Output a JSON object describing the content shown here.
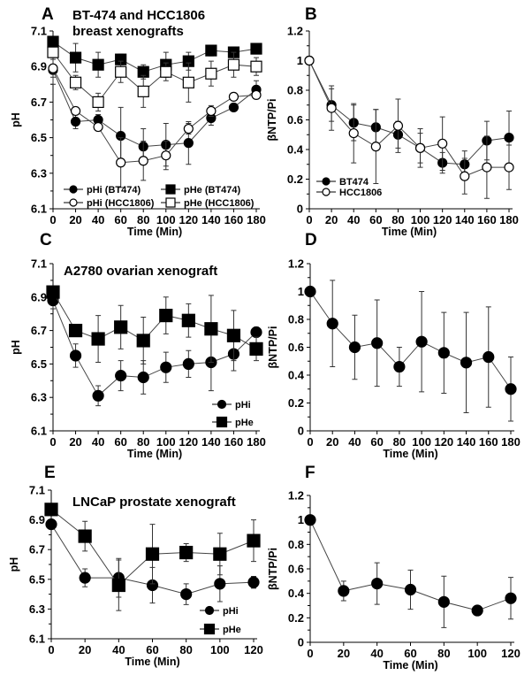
{
  "chart_data": [
    {
      "panel": "A",
      "type": "line",
      "title_lines": [
        "BT-474 and HCC1806",
        "breast xenografts"
      ],
      "xlabel": "Time (Min)",
      "ylabel": "pH",
      "xlim": [
        0,
        180
      ],
      "ylim": [
        6.1,
        7.1
      ],
      "xticks": [
        "0",
        "20",
        "40",
        "60",
        "80",
        "100",
        "120",
        "140",
        "160",
        "180"
      ],
      "yticks": [
        "6.1",
        "6.3",
        "6.5",
        "6.7",
        "6.9",
        "7.1"
      ],
      "x": [
        0,
        20,
        40,
        60,
        80,
        100,
        120,
        140,
        160,
        180
      ],
      "series": [
        {
          "name": "pHi (BT474)",
          "marker": "circle",
          "fill": "#000000",
          "values": [
            6.88,
            6.59,
            6.6,
            6.51,
            6.45,
            6.46,
            6.47,
            6.61,
            6.67,
            6.77
          ],
          "err": [
            0.08,
            0.04,
            0.03,
            0.16,
            0.1,
            0.12,
            0.12,
            0.04,
            0.02,
            0.05
          ]
        },
        {
          "name": "pHi (HCC1806)",
          "marker": "circle",
          "fill": "#ffffff",
          "values": [
            6.89,
            6.65,
            6.56,
            6.36,
            6.37,
            6.4,
            6.55,
            6.65,
            6.73,
            6.74
          ],
          "err": [
            0.05,
            0.02,
            0.02,
            0.14,
            0.11,
            0.08,
            0.03,
            0.03,
            0.02,
            0.02
          ]
        },
        {
          "name": "pHe (BT474)",
          "marker": "square",
          "fill": "#000000",
          "values": [
            7.04,
            6.95,
            6.91,
            6.94,
            6.87,
            6.91,
            6.93,
            6.99,
            6.98,
            7.0
          ],
          "err": [
            0.02,
            0.08,
            0.07,
            0.03,
            0.04,
            0.07,
            0.05,
            0.03,
            0.03,
            0.02
          ]
        },
        {
          "name": "pHe (HCC1806)",
          "marker": "square",
          "fill": "#ffffff",
          "values": [
            6.98,
            6.81,
            6.7,
            6.87,
            6.76,
            6.87,
            6.81,
            6.86,
            6.91,
            6.9
          ],
          "err": [
            0.03,
            0.04,
            0.05,
            0.06,
            0.09,
            0.05,
            0.11,
            0.07,
            0.07,
            0.05
          ]
        }
      ],
      "legend_order": [
        0,
        1,
        2,
        3
      ],
      "legend": "bottom, two columns"
    },
    {
      "panel": "B",
      "type": "line",
      "title_lines": [],
      "xlabel": "Time (Min)",
      "ylabel": "βNTP/Pi",
      "xlim": [
        0,
        180
      ],
      "ylim": [
        0,
        1.2
      ],
      "xticks": [
        "0",
        "20",
        "40",
        "60",
        "80",
        "100",
        "120",
        "140",
        "160",
        "180"
      ],
      "yticks": [
        "0",
        "0.2",
        "0.4",
        "0.6",
        "0.8",
        "1",
        "1.2"
      ],
      "x": [
        0,
        20,
        40,
        60,
        80,
        100,
        120,
        140,
        160,
        180
      ],
      "series": [
        {
          "name": "BT474",
          "marker": "circle",
          "fill": "#000000",
          "values": [
            1.0,
            0.7,
            0.58,
            0.55,
            0.5,
            0.41,
            0.31,
            0.3,
            0.46,
            0.48
          ],
          "err": [
            0,
            0.11,
            0.12,
            0.12,
            0.09,
            0.13,
            0.07,
            0.09,
            0.13,
            0.18
          ]
        },
        {
          "name": "HCC1806",
          "marker": "circle",
          "fill": "#ffffff",
          "values": [
            1.0,
            0.68,
            0.51,
            0.42,
            0.56,
            0.41,
            0.44,
            0.22,
            0.28,
            0.28
          ],
          "err": [
            0,
            0.15,
            0.2,
            0.25,
            0.18,
            0.1,
            0.18,
            0.12,
            0.21,
            0.15
          ]
        }
      ],
      "legend_order": [
        0,
        1
      ],
      "legend": "bottom-left"
    },
    {
      "panel": "C",
      "type": "line",
      "title_lines": [
        "A2780 ovarian xenograft"
      ],
      "xlabel": "Time (Min)",
      "ylabel": "pH",
      "xlim": [
        0,
        180
      ],
      "ylim": [
        6.1,
        7.1
      ],
      "xticks": [
        "0",
        "20",
        "40",
        "60",
        "80",
        "100",
        "120",
        "140",
        "160",
        "180"
      ],
      "yticks": [
        "6.1",
        "6.3",
        "6.5",
        "6.7",
        "6.9",
        "7.1"
      ],
      "x": [
        0,
        20,
        40,
        60,
        80,
        100,
        120,
        140,
        160,
        180
      ],
      "series": [
        {
          "name": "pHi",
          "marker": "circle",
          "fill": "#000000",
          "values": [
            6.88,
            6.55,
            6.31,
            6.43,
            6.42,
            6.48,
            6.5,
            6.51,
            6.56,
            6.69
          ],
          "err": [
            0.05,
            0.07,
            0.06,
            0.09,
            0.1,
            0.09,
            0.08,
            0.17,
            0.1,
            0.03
          ]
        },
        {
          "name": "pHe",
          "marker": "square",
          "fill": "#000000",
          "values": [
            6.93,
            6.7,
            6.65,
            6.72,
            6.64,
            6.79,
            6.76,
            6.71,
            6.67,
            6.59
          ],
          "err": [
            0.03,
            0.02,
            0.14,
            0.13,
            0.14,
            0.11,
            0.1,
            0.2,
            0.15,
            0.07
          ]
        }
      ],
      "legend_order": [
        0,
        1
      ],
      "legend": "bottom-right"
    },
    {
      "panel": "D",
      "type": "line",
      "title_lines": [],
      "xlabel": "Time (Min)",
      "ylabel": "βNTP/Pi",
      "xlim": [
        0,
        180
      ],
      "ylim": [
        0,
        1.2
      ],
      "xticks": [
        "0",
        "20",
        "40",
        "60",
        "80",
        "100",
        "120",
        "140",
        "160",
        "180"
      ],
      "yticks": [
        "0",
        "0.2",
        "0.4",
        "0.6",
        "0.8",
        "1",
        "1.2"
      ],
      "x": [
        0,
        20,
        40,
        60,
        80,
        100,
        120,
        140,
        160,
        180
      ],
      "series": [
        {
          "name": "βNTP/Pi",
          "marker": "circle",
          "fill": "#000000",
          "values": [
            1.0,
            0.77,
            0.6,
            0.63,
            0.46,
            0.64,
            0.56,
            0.49,
            0.53,
            0.3
          ],
          "err": [
            0,
            0.31,
            0.23,
            0.31,
            0.14,
            0.36,
            0.29,
            0.36,
            0.36,
            0.23
          ]
        }
      ],
      "legend_order": [],
      "legend": "none"
    },
    {
      "panel": "E",
      "type": "line",
      "title_lines": [
        "LNCaP prostate xenograft"
      ],
      "xlabel": "Time (Min)",
      "ylabel": "pH",
      "xlim": [
        0,
        120
      ],
      "ylim": [
        6.1,
        7.1
      ],
      "xticks": [
        "0",
        "20",
        "40",
        "60",
        "80",
        "100",
        "120"
      ],
      "yticks": [
        "6.1",
        "6.3",
        "6.5",
        "6.7",
        "6.9",
        "7.1"
      ],
      "x": [
        0,
        20,
        40,
        60,
        80,
        100,
        120
      ],
      "series": [
        {
          "name": "pHi",
          "marker": "circle",
          "fill": "#000000",
          "values": [
            6.87,
            6.51,
            6.51,
            6.46,
            6.4,
            6.47,
            6.48
          ],
          "err": [
            0,
            0.06,
            0.13,
            0.12,
            0.07,
            0.12,
            0.04
          ]
        },
        {
          "name": "pHe",
          "marker": "square",
          "fill": "#000000",
          "values": [
            6.97,
            6.79,
            6.46,
            6.67,
            6.68,
            6.67,
            6.76
          ],
          "err": [
            0.04,
            0.1,
            0.17,
            0.2,
            0.06,
            0.14,
            0.14
          ]
        }
      ],
      "legend_order": [
        0,
        1
      ],
      "legend": "bottom-right"
    },
    {
      "panel": "F",
      "type": "line",
      "title_lines": [],
      "xlabel": "Time (Min)",
      "ylabel": "βNTP/Pi",
      "xlim": [
        0,
        120
      ],
      "ylim": [
        0,
        1.2
      ],
      "xticks": [
        "0",
        "20",
        "40",
        "60",
        "80",
        "100",
        "120"
      ],
      "yticks": [
        "0",
        "0.2",
        "0.4",
        "0.6",
        "0.8",
        "1",
        "1.2"
      ],
      "x": [
        0,
        20,
        40,
        60,
        80,
        100,
        120
      ],
      "series": [
        {
          "name": "βNTP/Pi",
          "marker": "circle",
          "fill": "#000000",
          "values": [
            1.0,
            0.42,
            0.48,
            0.43,
            0.33,
            0.26,
            0.36
          ],
          "err": [
            0,
            0.08,
            0.17,
            0.16,
            0.21,
            0.03,
            0.17
          ]
        }
      ],
      "legend_order": [],
      "legend": "none"
    }
  ]
}
